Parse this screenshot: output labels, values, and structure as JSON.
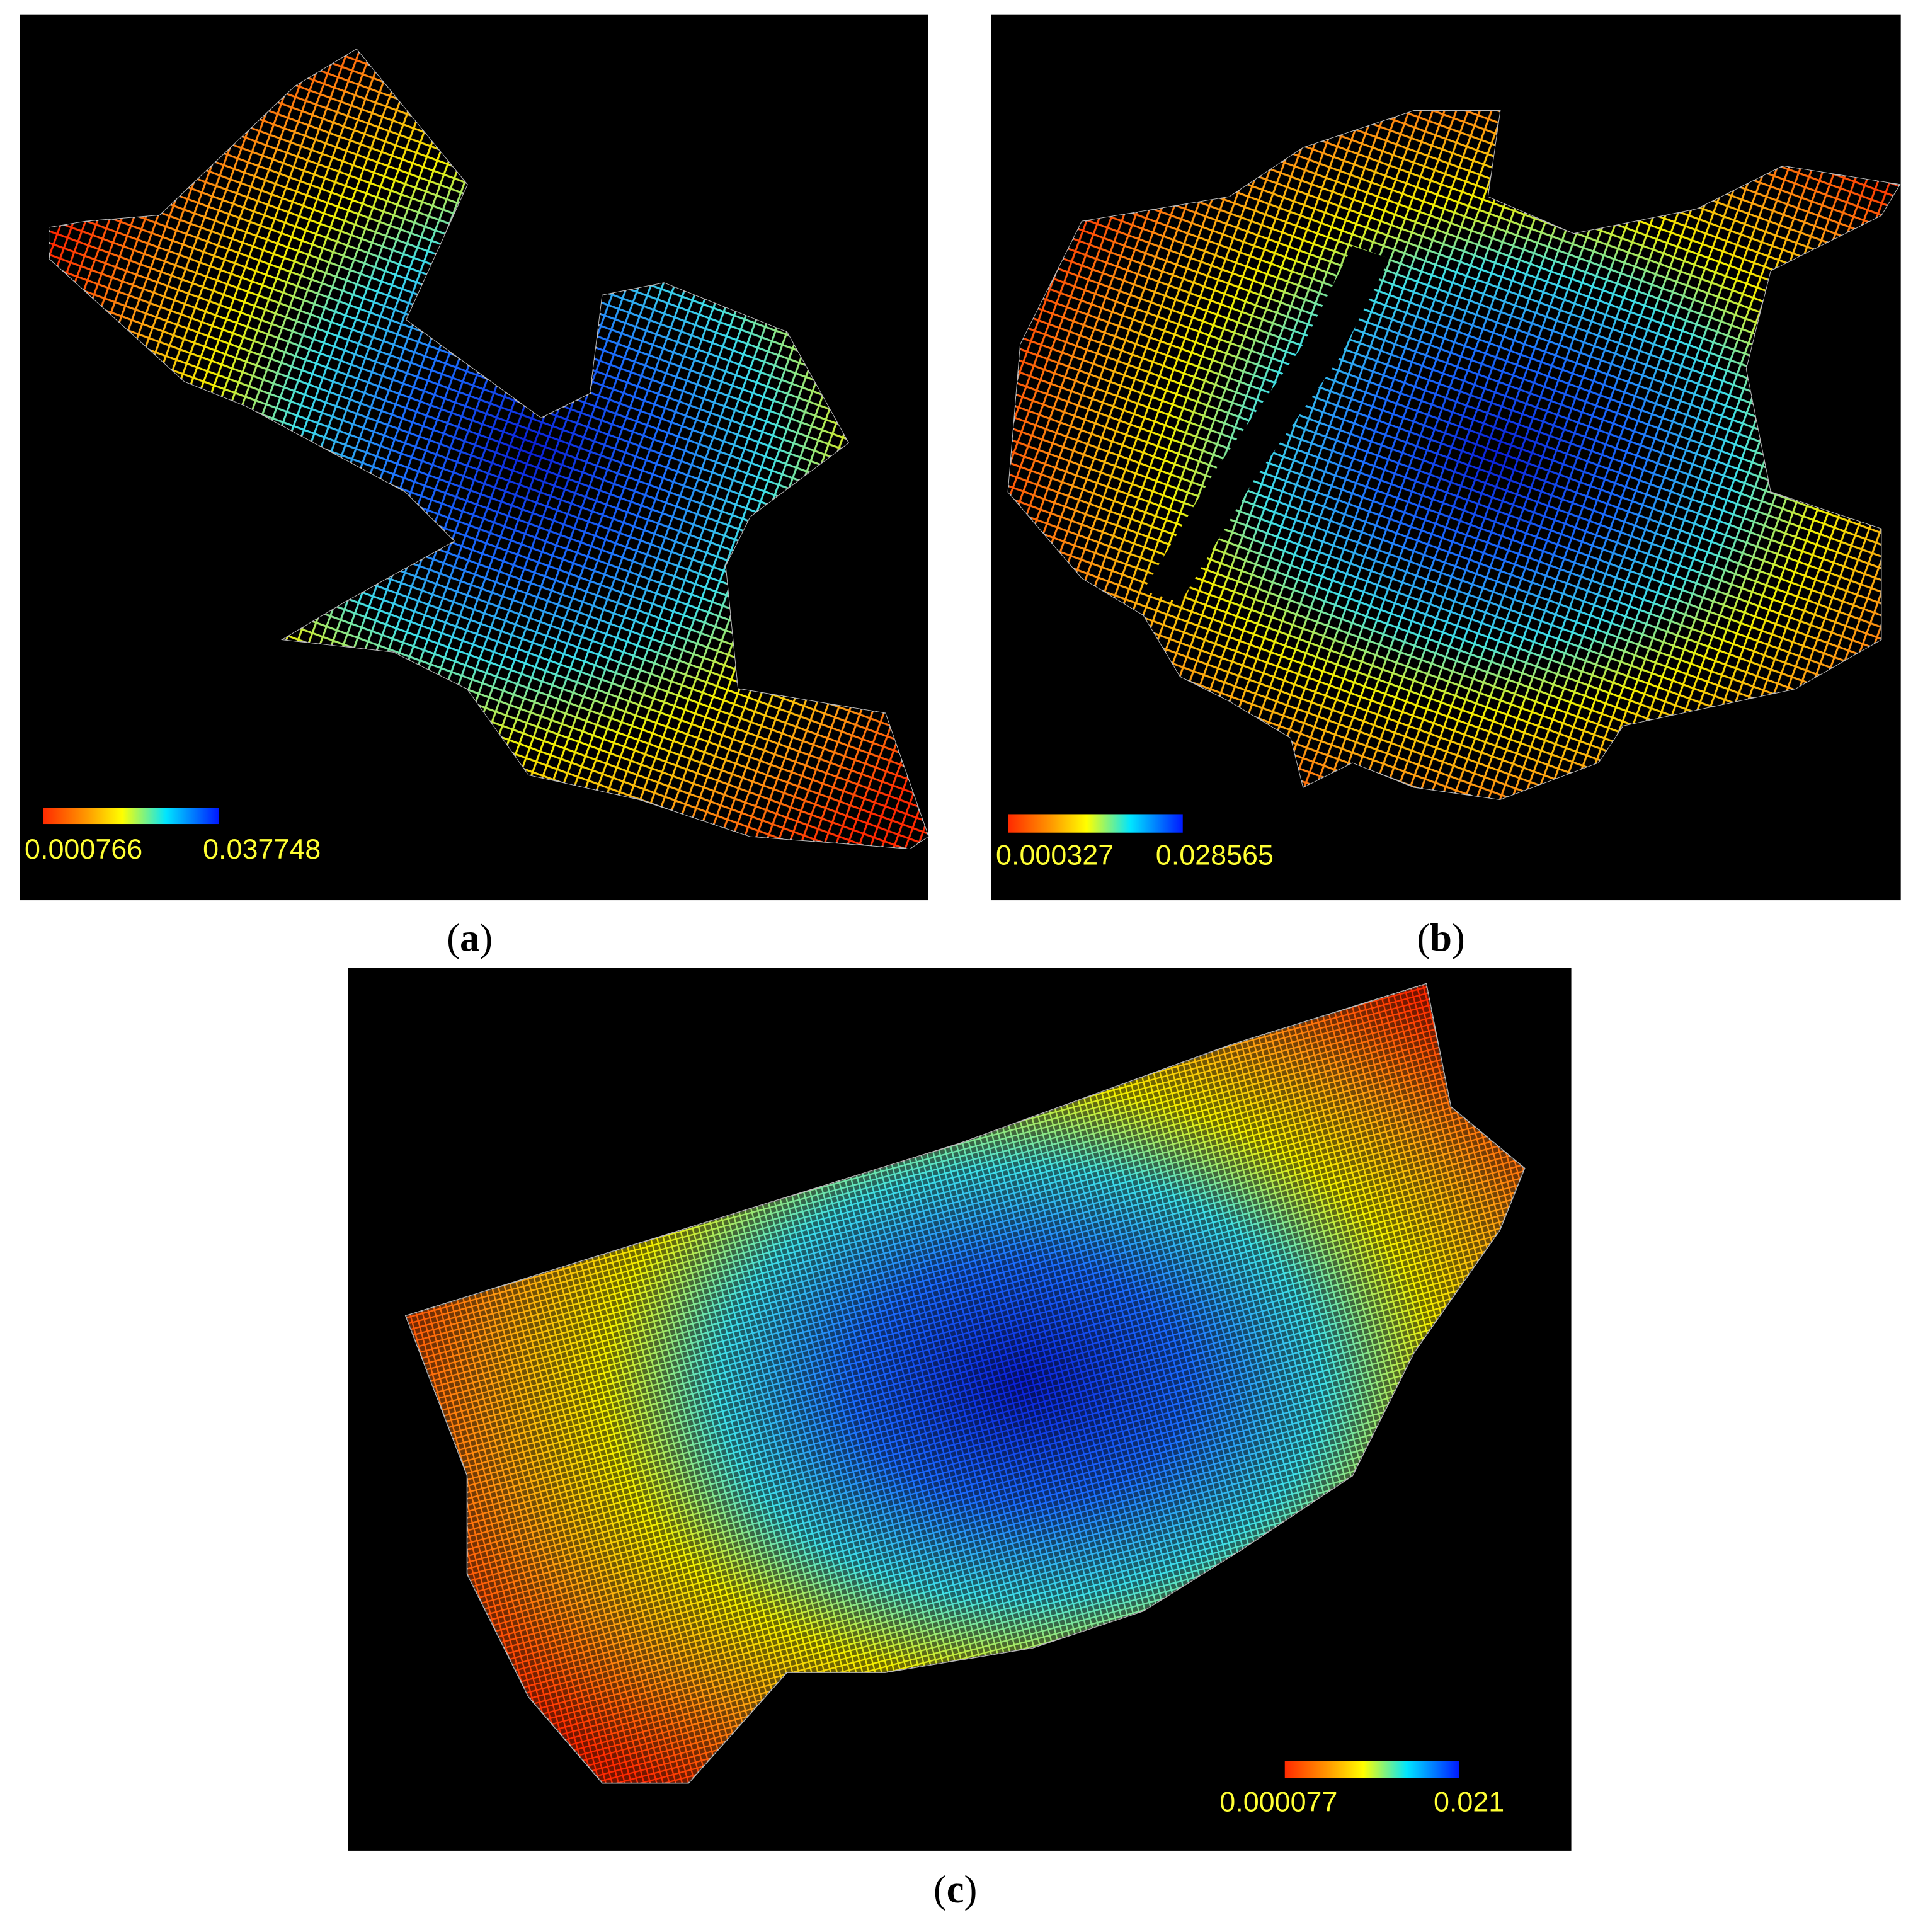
{
  "panels": [
    {
      "label_open": "(",
      "label_letter": "a",
      "label_close": ")",
      "colorbar": {
        "min_label": "0.000766",
        "max_label": "0.037748"
      }
    },
    {
      "label_open": "(",
      "label_letter": "b",
      "label_close": ")",
      "colorbar": {
        "min_label": "0.000327",
        "max_label": "0.028565"
      }
    },
    {
      "label_open": "(",
      "label_letter": "c",
      "label_close": ")",
      "colorbar": {
        "min_label": "0.000077",
        "max_label": "0.021"
      }
    }
  ]
}
